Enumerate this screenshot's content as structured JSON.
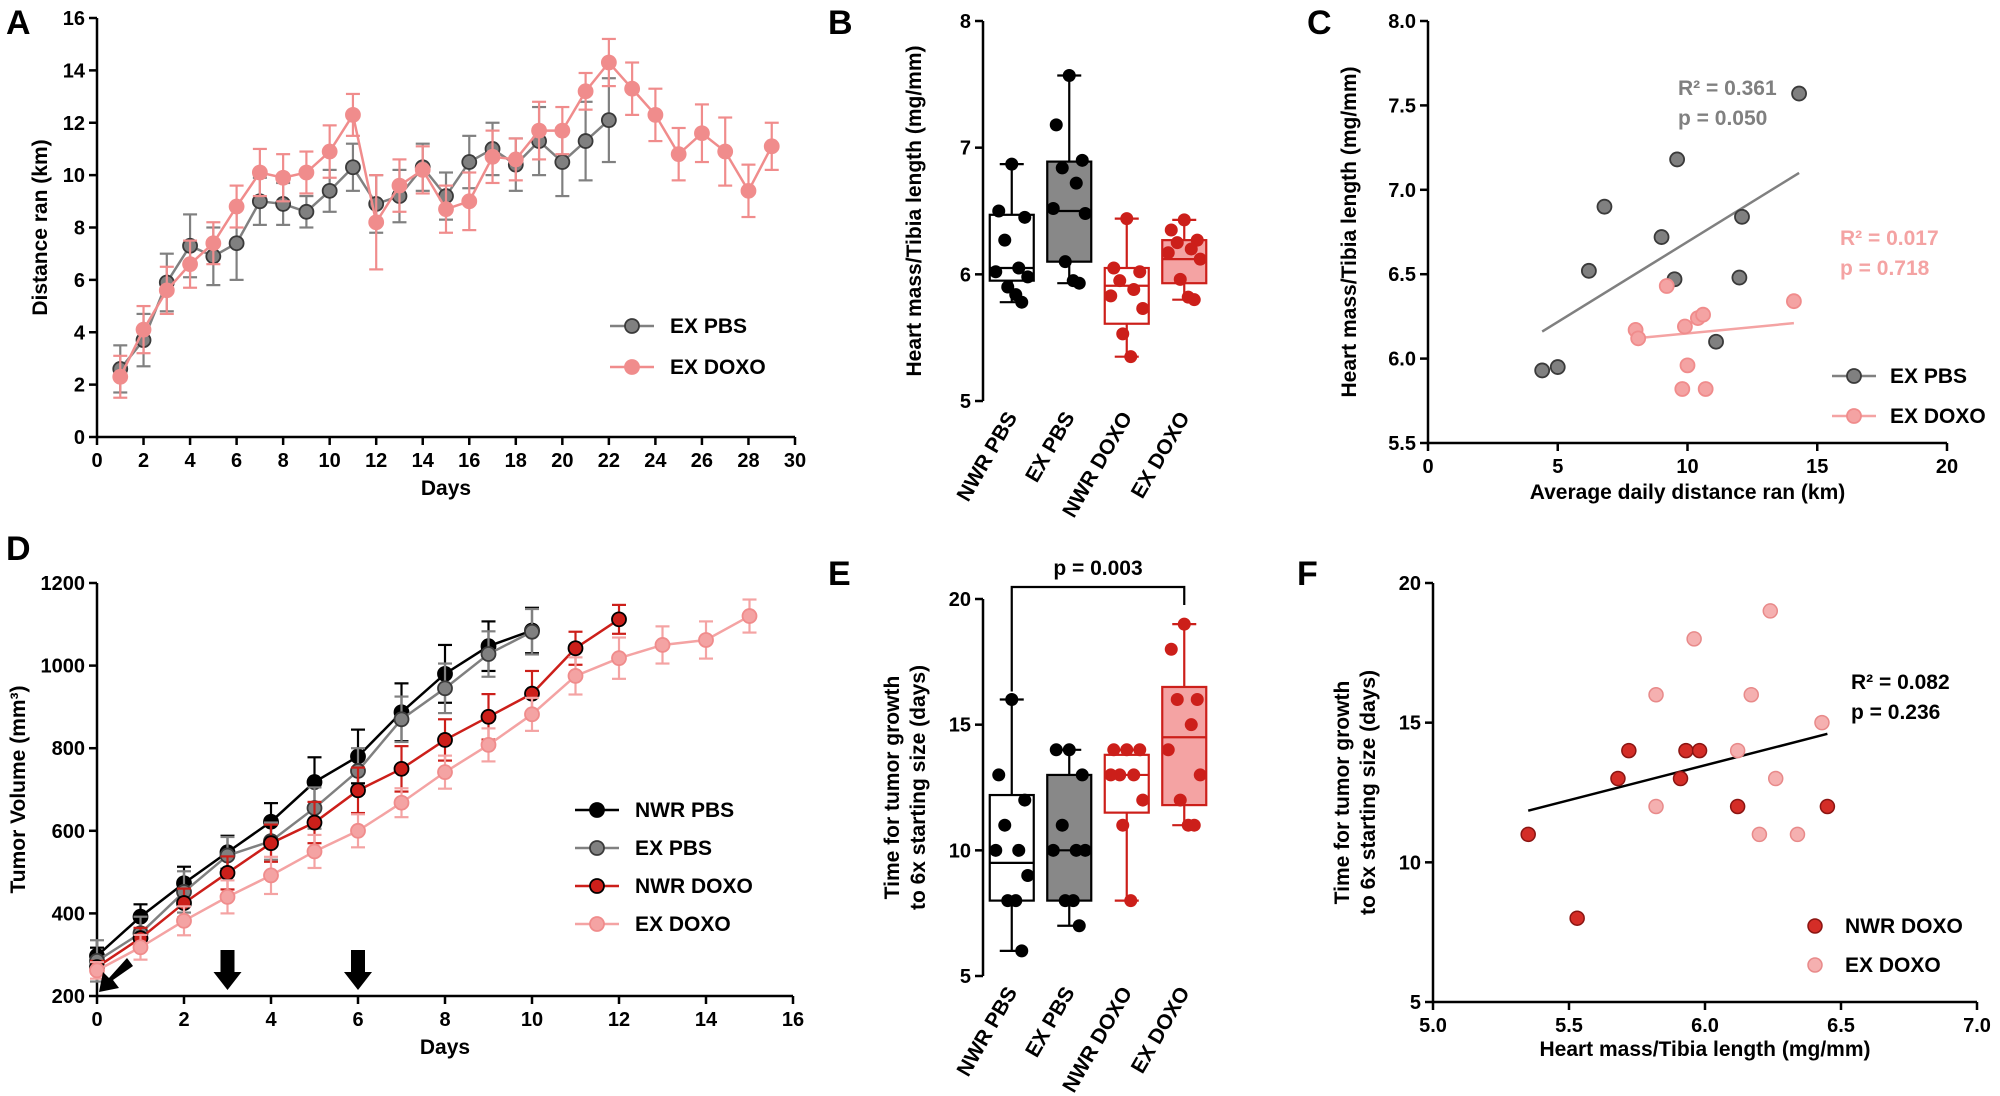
{
  "colors": {
    "ex_pbs": "#808080",
    "ex_pbs_dark": "#3a3a3a",
    "nwr_pbs": "#000000",
    "nwr_doxo": "#cc1f1a",
    "ex_doxo": "#f4a3a3",
    "ex_doxo_line": "#f08c8c",
    "nwr_doxo_point": "#d42d27",
    "ex_doxo_point": "#f5b0b0"
  },
  "panels": {
    "A": "A",
    "B": "B",
    "C": "C",
    "D": "D",
    "E": "E",
    "F": "F"
  },
  "chart_data": [
    {
      "id": "A",
      "type": "line",
      "xlabel": "Days",
      "ylabel": "Distance ran (km)",
      "xlim": [
        0,
        30
      ],
      "ylim": [
        0,
        16
      ],
      "xticks": [
        0,
        2,
        4,
        6,
        8,
        10,
        12,
        14,
        16,
        18,
        20,
        22,
        24,
        26,
        28,
        30
      ],
      "yticks": [
        0,
        2,
        4,
        6,
        8,
        10,
        12,
        14,
        16
      ],
      "legend_position": "bottom-right",
      "series": [
        {
          "name": "EX PBS",
          "color": "ex_pbs",
          "x": [
            1,
            2,
            3,
            4,
            5,
            6,
            7,
            8,
            9,
            10,
            11,
            12,
            13,
            14,
            15,
            16,
            17,
            18,
            19,
            20,
            21,
            22
          ],
          "y": [
            2.6,
            3.7,
            5.9,
            7.3,
            6.9,
            7.4,
            9.0,
            8.9,
            8.6,
            9.4,
            10.3,
            8.9,
            9.2,
            10.3,
            9.2,
            10.5,
            11.0,
            10.4,
            11.3,
            10.5,
            11.3,
            12.1
          ],
          "err": [
            0.9,
            1.0,
            1.1,
            1.2,
            1.1,
            1.4,
            0.9,
            0.8,
            0.6,
            0.8,
            0.9,
            1.1,
            1.0,
            0.9,
            0.9,
            1.0,
            1.0,
            1.0,
            1.3,
            1.3,
            1.5,
            1.6
          ]
        },
        {
          "name": "EX DOXO",
          "color": "ex_doxo_line",
          "x": [
            1,
            2,
            3,
            4,
            5,
            6,
            7,
            8,
            9,
            10,
            11,
            12,
            13,
            14,
            15,
            16,
            17,
            18,
            19,
            20,
            21,
            22,
            23,
            24,
            25,
            26,
            27,
            28,
            29
          ],
          "y": [
            2.3,
            4.1,
            5.6,
            6.6,
            7.4,
            8.8,
            10.1,
            9.9,
            10.1,
            10.9,
            12.3,
            8.2,
            9.6,
            10.2,
            8.7,
            9.0,
            10.7,
            10.6,
            11.7,
            11.7,
            13.2,
            14.3,
            13.3,
            12.3,
            10.8,
            11.6,
            10.9,
            9.4,
            11.1
          ],
          "err": [
            0.8,
            0.9,
            0.9,
            0.9,
            0.8,
            0.8,
            0.9,
            0.9,
            0.8,
            1.0,
            0.8,
            1.8,
            1.0,
            0.9,
            0.9,
            1.1,
            1.0,
            0.8,
            1.1,
            0.9,
            0.7,
            0.9,
            1.0,
            1.0,
            1.0,
            1.1,
            1.3,
            1.0,
            0.9
          ]
        }
      ]
    },
    {
      "id": "B",
      "type": "box",
      "ylabel": "Heart mass/Tibia length (mg/mm)",
      "ylim": [
        5,
        8
      ],
      "yticks": [
        5,
        6,
        7,
        8
      ],
      "categories": [
        "NWR PBS",
        "EX PBS",
        "NWR DOXO",
        "EX DOXO"
      ],
      "boxes": [
        {
          "name": "NWR PBS",
          "min": 5.78,
          "q1": 5.95,
          "median": 6.05,
          "q3": 6.47,
          "max": 6.87,
          "points": [
            6.87,
            6.5,
            6.45,
            6.27,
            6.05,
            6.02,
            5.98,
            5.9,
            5.84,
            5.78
          ],
          "fill": "#ffffff",
          "stroke": "nwr_pbs",
          "point": "nwr_pbs"
        },
        {
          "name": "EX PBS",
          "min": 5.93,
          "q1": 6.1,
          "median": 6.5,
          "q3": 6.89,
          "max": 7.57,
          "points": [
            7.57,
            7.18,
            6.9,
            6.84,
            6.72,
            6.52,
            6.48,
            6.1,
            5.95,
            5.93
          ],
          "fill": "#888888",
          "stroke": "nwr_pbs",
          "point": "nwr_pbs"
        },
        {
          "name": "NWR DOXO",
          "min": 5.35,
          "q1": 5.61,
          "median": 5.91,
          "q3": 6.05,
          "max": 6.44,
          "points": [
            6.44,
            6.05,
            6.02,
            5.95,
            5.88,
            5.83,
            5.73,
            5.53,
            5.35
          ],
          "fill": "#ffffff",
          "stroke": "nwr_doxo",
          "point": "nwr_doxo"
        },
        {
          "name": "EX DOXO",
          "min": 5.8,
          "q1": 5.93,
          "median": 6.12,
          "q3": 6.27,
          "max": 6.43,
          "points": [
            6.43,
            6.35,
            6.27,
            6.25,
            6.2,
            6.17,
            6.12,
            5.96,
            5.82,
            5.8
          ],
          "fill": "#f4a3a3",
          "stroke": "nwr_doxo",
          "point": "nwr_doxo"
        }
      ]
    },
    {
      "id": "C",
      "type": "scatter",
      "xlabel": "Average daily distance ran (km)",
      "ylabel": "Heart mass/Tibia length (mg/mm)",
      "xlim": [
        0,
        20
      ],
      "ylim": [
        5.5,
        8.0
      ],
      "xticks": [
        0,
        5,
        10,
        15,
        20
      ],
      "yticks": [
        5.5,
        6.0,
        6.5,
        7.0,
        7.5,
        8.0
      ],
      "legend_position": "bottom-right",
      "series": [
        {
          "name": "EX PBS",
          "color": "ex_pbs",
          "x": [
            4.4,
            5.0,
            6.2,
            6.8,
            9.0,
            9.5,
            9.6,
            11.1,
            12.0,
            12.1,
            14.3
          ],
          "y": [
            5.93,
            5.95,
            6.52,
            6.9,
            6.72,
            6.47,
            7.18,
            6.1,
            6.48,
            6.84,
            7.57
          ],
          "fit": [
            [
              4.4,
              6.16
            ],
            [
              14.3,
              7.1
            ]
          ],
          "r2": "R² = 0.361",
          "p": "p = 0.050"
        },
        {
          "name": "EX DOXO",
          "color": "ex_doxo",
          "x": [
            8.0,
            8.1,
            9.2,
            9.8,
            9.9,
            10.0,
            10.4,
            10.6,
            10.7,
            14.1
          ],
          "y": [
            6.17,
            6.12,
            6.43,
            5.82,
            6.19,
            5.96,
            6.24,
            6.26,
            5.82,
            6.34
          ],
          "fit": [
            [
              8.0,
              6.12
            ],
            [
              14.1,
              6.21
            ]
          ],
          "r2": "R² = 0.017",
          "p": "p = 0.718"
        }
      ]
    },
    {
      "id": "D",
      "type": "line",
      "xlabel": "Days",
      "ylabel": "Tumor Volume (mm³)",
      "xlim": [
        0,
        16
      ],
      "ylim": [
        200,
        1200
      ],
      "xticks": [
        0,
        2,
        4,
        6,
        8,
        10,
        12,
        14,
        16
      ],
      "yticks": [
        200,
        400,
        600,
        800,
        1000,
        1200
      ],
      "legend_position": "bottom-right",
      "arrows_at_days": [
        0,
        3,
        6
      ],
      "series": [
        {
          "name": "NWR PBS",
          "color": "nwr_pbs",
          "x": [
            0,
            1,
            2,
            3,
            4,
            5,
            6,
            7,
            8,
            9,
            10
          ],
          "y": [
            297,
            392,
            473,
            548,
            622,
            718,
            780,
            887,
            980,
            1047,
            1085
          ],
          "err": [
            20,
            30,
            40,
            40,
            45,
            60,
            65,
            70,
            70,
            60,
            55
          ]
        },
        {
          "name": "EX PBS",
          "color": "ex_pbs",
          "x": [
            0,
            1,
            2,
            3,
            4,
            5,
            6,
            7,
            8,
            9,
            10
          ],
          "y": [
            285,
            352,
            452,
            540,
            575,
            655,
            745,
            870,
            945,
            1028,
            1082
          ],
          "err": [
            50,
            40,
            50,
            45,
            45,
            50,
            55,
            55,
            60,
            55,
            55
          ]
        },
        {
          "name": "NWR DOXO",
          "color": "nwr_doxo",
          "x": [
            0,
            1,
            2,
            3,
            4,
            5,
            6,
            7,
            8,
            9,
            10,
            11,
            12
          ],
          "y": [
            270,
            340,
            425,
            498,
            570,
            620,
            698,
            750,
            820,
            876,
            932,
            1042,
            1112
          ],
          "err": [
            15,
            25,
            35,
            40,
            45,
            50,
            55,
            55,
            50,
            55,
            55,
            40,
            35
          ]
        },
        {
          "name": "EX DOXO",
          "color": "ex_doxo",
          "x": [
            0,
            1,
            2,
            3,
            4,
            5,
            6,
            7,
            8,
            9,
            10,
            11,
            12,
            13,
            14,
            15
          ],
          "y": [
            262,
            318,
            382,
            440,
            492,
            550,
            600,
            668,
            742,
            808,
            882,
            975,
            1018,
            1050,
            1062,
            1120
          ],
          "err": [
            20,
            30,
            35,
            40,
            45,
            40,
            40,
            35,
            40,
            40,
            40,
            45,
            50,
            45,
            45,
            40
          ]
        }
      ]
    },
    {
      "id": "E",
      "type": "box",
      "ylabel": "Time for tumor growth to 6x starting size (days)",
      "ylabel_lines": [
        "Time for tumor growth",
        "to 6x starting size (days)"
      ],
      "ylim": [
        5,
        20
      ],
      "yticks": [
        5,
        10,
        15,
        20
      ],
      "categories": [
        "NWR PBS",
        "EX PBS",
        "NWR DOXO",
        "EX DOXO"
      ],
      "significance": {
        "between": [
          "NWR PBS",
          "EX DOXO"
        ],
        "label": "p = 0.003"
      },
      "boxes": [
        {
          "name": "NWR PBS",
          "min": 6,
          "q1": 8,
          "median": 9.5,
          "q3": 12.2,
          "max": 16,
          "points": [
            16,
            13,
            12,
            11,
            10,
            10,
            9,
            8,
            8,
            6
          ],
          "fill": "#ffffff",
          "stroke": "nwr_pbs",
          "point": "nwr_pbs"
        },
        {
          "name": "EX PBS",
          "min": 7,
          "q1": 8,
          "median": 10,
          "q3": 13,
          "max": 14,
          "points": [
            14,
            14,
            13,
            11,
            10,
            10,
            10,
            8,
            8,
            7
          ],
          "fill": "#888888",
          "stroke": "nwr_pbs",
          "point": "nwr_pbs"
        },
        {
          "name": "NWR DOXO",
          "min": 8,
          "q1": 11.5,
          "median": 13,
          "q3": 13.8,
          "max": 14,
          "points": [
            14,
            14,
            14,
            13,
            13,
            13,
            12,
            11,
            8
          ],
          "fill": "#ffffff",
          "stroke": "nwr_doxo",
          "point": "nwr_doxo"
        },
        {
          "name": "EX DOXO",
          "min": 11,
          "q1": 11.8,
          "median": 14.5,
          "q3": 16.5,
          "max": 19,
          "points": [
            19,
            18,
            16,
            16,
            15,
            14,
            13,
            12,
            11,
            11
          ],
          "fill": "#f4a3a3",
          "stroke": "nwr_doxo",
          "point": "nwr_doxo"
        }
      ]
    },
    {
      "id": "F",
      "type": "scatter",
      "xlabel": "Heart mass/Tibia length (mg/mm)",
      "ylabel": "Time for tumor growth to 6x starting size (days)",
      "ylabel_lines": [
        "Time for tumor growth",
        "to 6x starting size (days)"
      ],
      "xlim": [
        5.0,
        7.0
      ],
      "ylim": [
        5,
        20
      ],
      "xticks": [
        5.0,
        5.5,
        6.0,
        6.5,
        7.0
      ],
      "yticks": [
        5,
        10,
        15,
        20
      ],
      "legend_position": "bottom-right",
      "fit": [
        [
          5.35,
          11.85
        ],
        [
          6.45,
          14.6
        ]
      ],
      "r2": "R² = 0.082",
      "p": "p = 0.236",
      "series": [
        {
          "name": "NWR DOXO",
          "color": "nwr_doxo_point",
          "x": [
            5.35,
            5.53,
            5.68,
            5.72,
            5.91,
            5.93,
            5.98,
            6.12,
            6.45
          ],
          "y": [
            11,
            8,
            13,
            14,
            13,
            14,
            14,
            12,
            12
          ]
        },
        {
          "name": "EX DOXO",
          "color": "ex_doxo_point",
          "x": [
            5.82,
            5.82,
            5.96,
            6.12,
            6.17,
            6.2,
            6.24,
            6.26,
            6.34,
            6.43
          ],
          "y": [
            16,
            12,
            18,
            14,
            16,
            11,
            19,
            13,
            11,
            15
          ]
        }
      ]
    }
  ]
}
